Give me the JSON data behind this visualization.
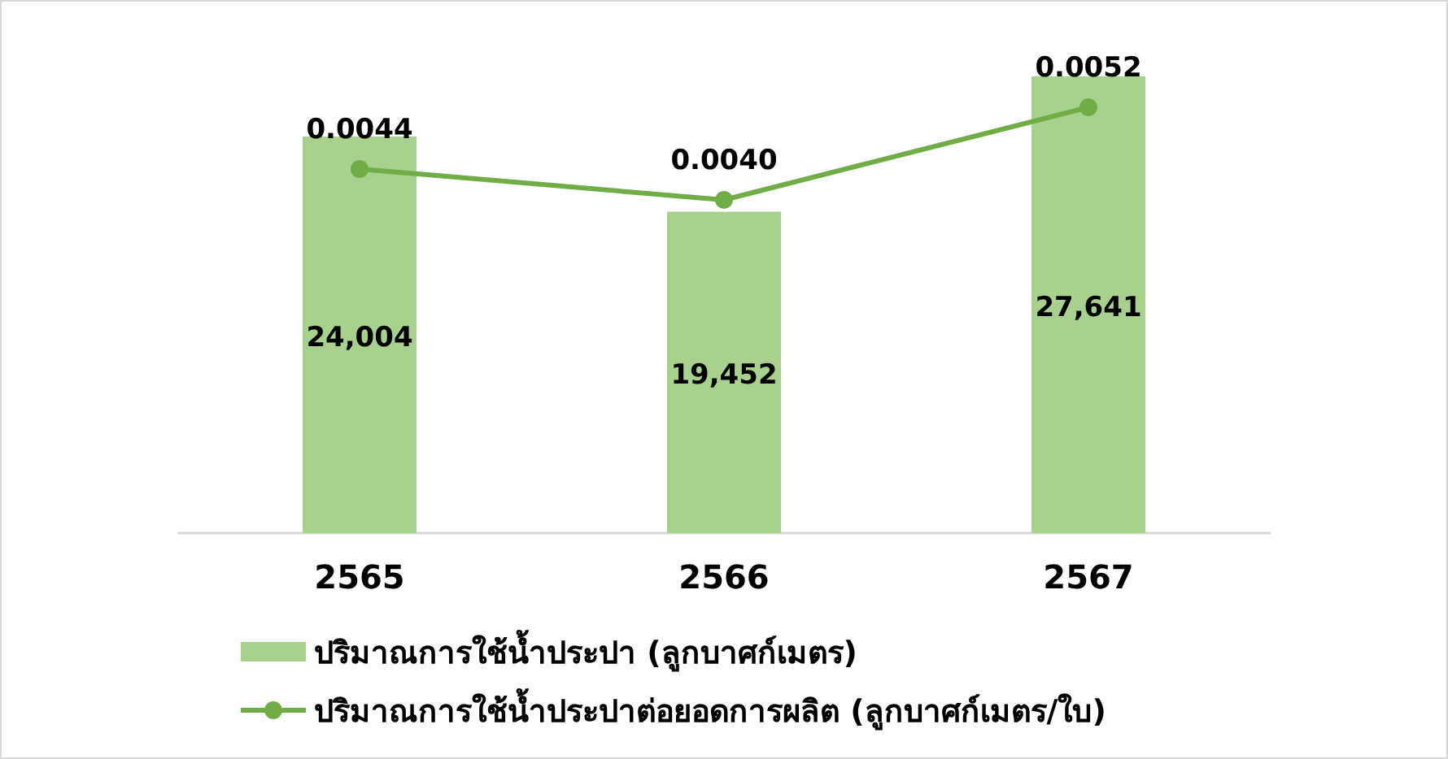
{
  "chart_data": {
    "type": "bar",
    "categories": [
      "2565",
      "2566",
      "2567"
    ],
    "tick_labels": "x",
    "legend": "bottom",
    "series": [
      {
        "name": "ปริมาณการใช้น้ำประปา (ลูกบาศก์เมตร)",
        "color": "#a9d18e",
        "values": [
          24004,
          19452,
          27641
        ],
        "value_labels": [
          "24,004",
          "19,452",
          "27,641"
        ]
      },
      {
        "name": "ปริมาณการใช้น้ำประปาต่อยอดการผลิต (ลูกบาศก์เมตร/ใบ)",
        "type": "line",
        "axis": "y2",
        "marker": "circle",
        "line_style": "solid",
        "color": "#70ad47",
        "values": [
          0.0044,
          0.004,
          0.0052
        ],
        "value_labels": [
          "0.0044",
          "0.0040",
          "0.0052"
        ]
      }
    ]
  }
}
